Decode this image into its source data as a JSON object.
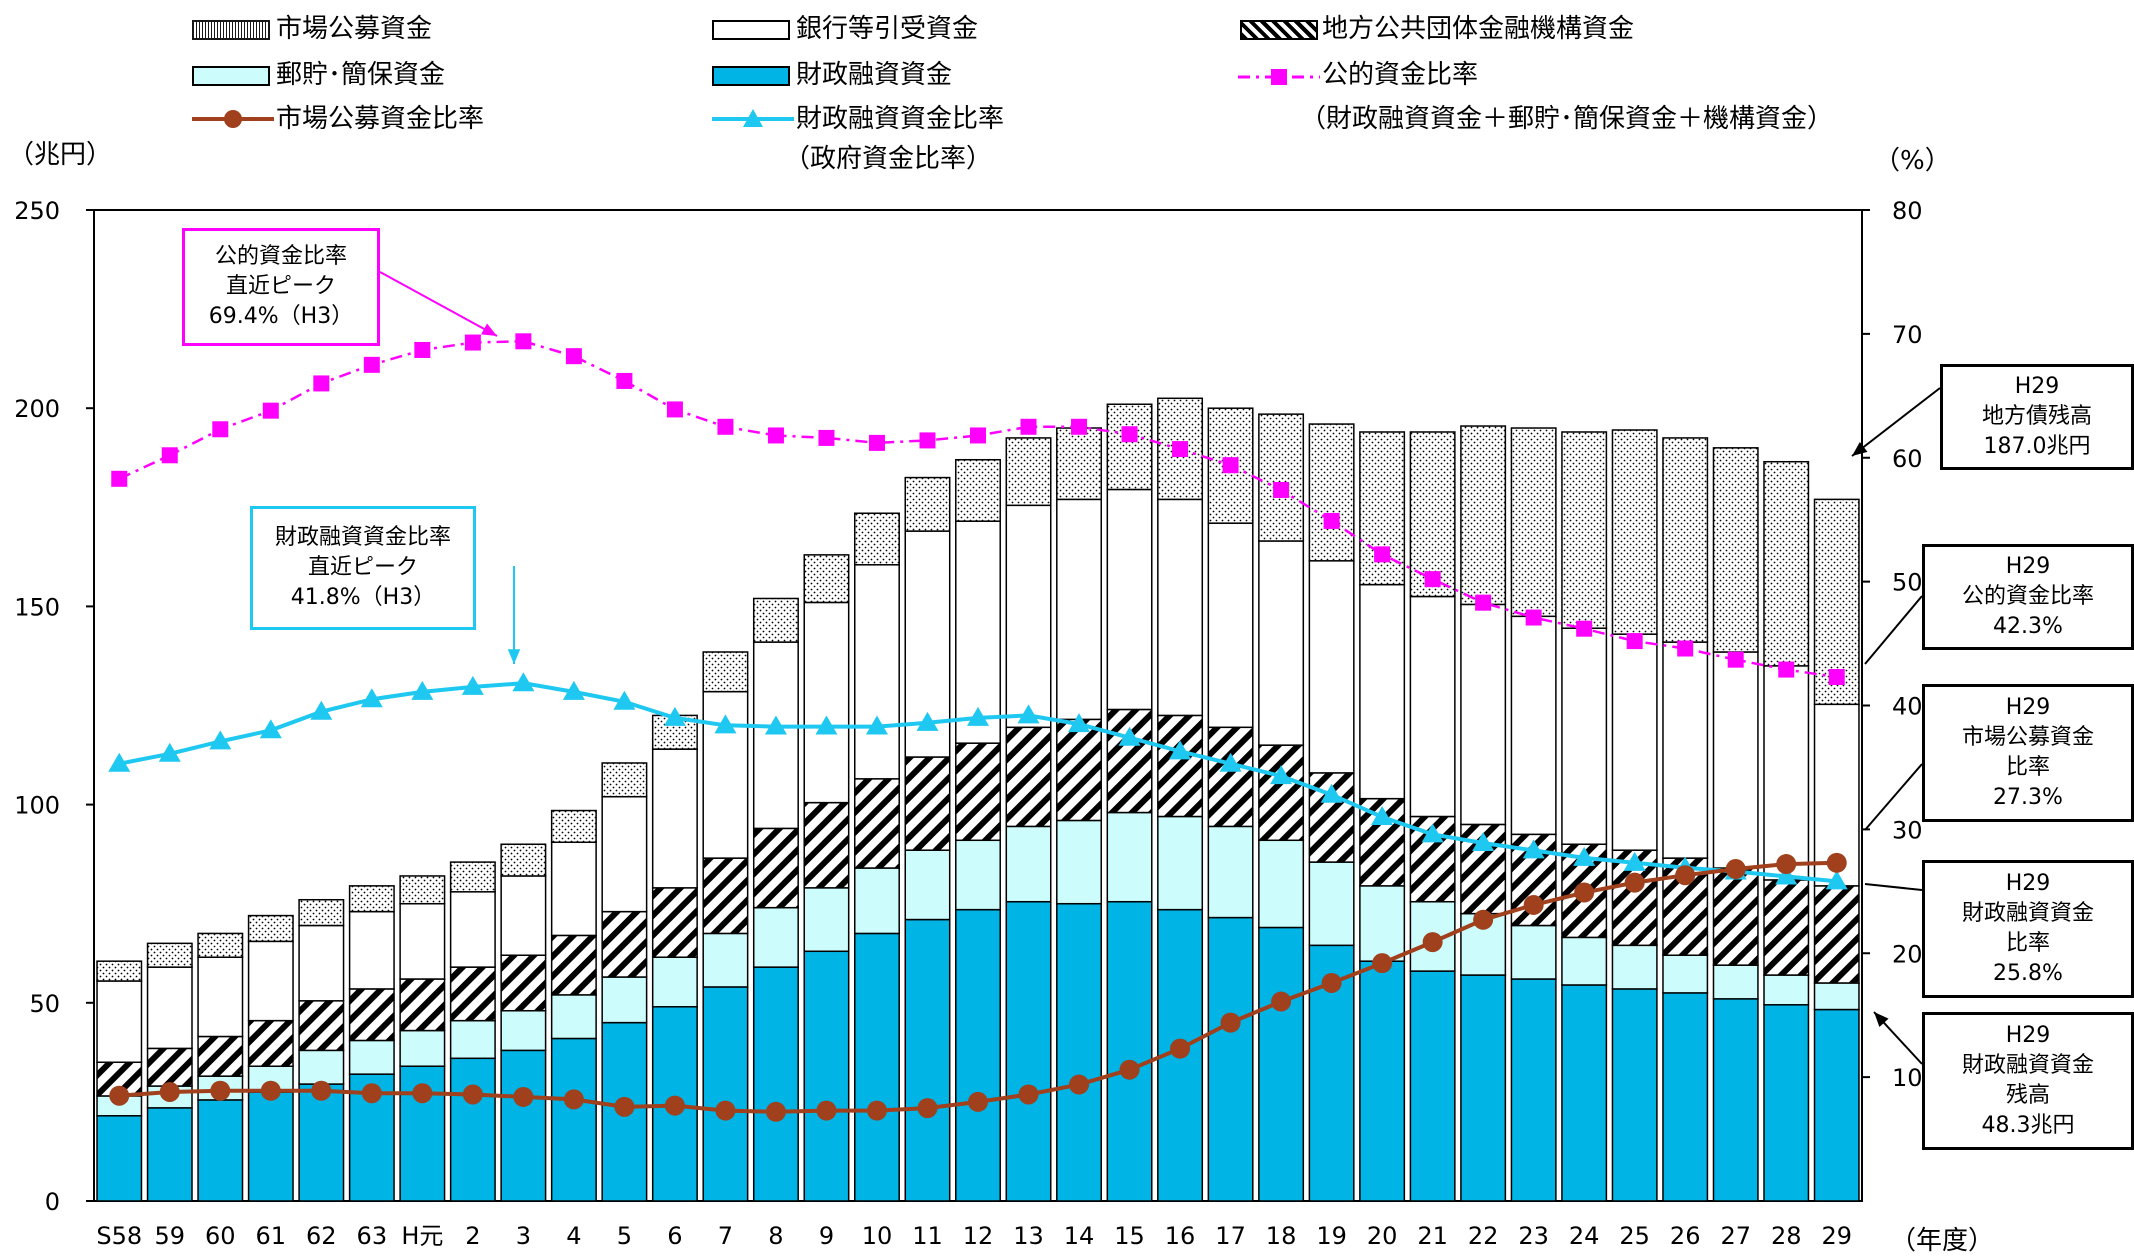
{
  "legend": {
    "market_funds": "市場公募資金",
    "bank_funds": "銀行等引受資金",
    "local_agency_funds": "地方公共団体金融機構資金",
    "postal_funds": "郵貯･簡保資金",
    "fiscal_funds": "財政融資資金",
    "public_ratio": "公的資金比率",
    "market_ratio": "市場公募資金比率",
    "fiscal_ratio": "財政融資資金比率",
    "fiscal_ratio_note": "（政府資金比率）",
    "public_ratio_note": "（財政融資資金＋郵貯･簡保資金＋機構資金）"
  },
  "units": {
    "left": "（兆円）",
    "right": "（%）",
    "x": "（年度）"
  },
  "peak_callouts": {
    "public": [
      "公的資金比率",
      "直近ピーク",
      "69.4%（H3）"
    ],
    "fiscal": [
      "財政融資資金比率",
      "直近ピーク",
      "41.8%（H3）"
    ]
  },
  "side_callouts": [
    {
      "lines": [
        "H29",
        "地方債残高",
        "187.0兆円"
      ]
    },
    {
      "lines": [
        "H29",
        "公的資金比率",
        "42.3%"
      ]
    },
    {
      "lines": [
        "H29",
        "市場公募資金",
        "比率",
        "27.3%"
      ]
    },
    {
      "lines": [
        "H29",
        "財政融資資金",
        "比率",
        "25.8%"
      ]
    },
    {
      "lines": [
        "H29",
        "財政融資資金",
        "残高",
        "48.3兆円"
      ]
    }
  ],
  "colors": {
    "fiscal": "#00b4e6",
    "postal": "#ccfcfc",
    "bank": "#ffffff",
    "market_dots": "#000000",
    "public_ratio": "#ff00ff",
    "fiscal_ratio": "#1ec8f0",
    "market_ratio": "#a0401c"
  },
  "chart_data": {
    "type": "bar",
    "stacked": true,
    "categories": [
      "S58",
      "59",
      "60",
      "61",
      "62",
      "63",
      "H元",
      "2",
      "3",
      "4",
      "5",
      "6",
      "7",
      "8",
      "9",
      "10",
      "11",
      "12",
      "13",
      "14",
      "15",
      "16",
      "17",
      "18",
      "19",
      "20",
      "21",
      "22",
      "23",
      "24",
      "25",
      "26",
      "27",
      "28",
      "29"
    ],
    "left_axis": {
      "ylim": [
        0,
        250
      ],
      "ticks": [
        "0",
        "50",
        "100",
        "150",
        "200",
        "250"
      ]
    },
    "right_axis": {
      "ylim": [
        0,
        80
      ],
      "ticks": [
        "10",
        "20",
        "30",
        "40",
        "50",
        "60",
        "70",
        "80"
      ]
    },
    "series": [
      {
        "name": "財政融資資金",
        "kind": "bar",
        "values": [
          21.5,
          23.5,
          25.5,
          27.5,
          29.5,
          32,
          34,
          36,
          38,
          41,
          45,
          49,
          54,
          59,
          63,
          67.5,
          71,
          73.5,
          75.5,
          75,
          75.5,
          73.5,
          71.5,
          69,
          64.5,
          60.5,
          58,
          57,
          56,
          54.5,
          53.5,
          52.5,
          51,
          49.5,
          48.3
        ]
      },
      {
        "name": "郵貯･簡保資金",
        "kind": "bar",
        "values": [
          5,
          5.5,
          6,
          6.5,
          8.5,
          8.5,
          9,
          9.5,
          10,
          11,
          11.5,
          12.5,
          13.5,
          15,
          16,
          16.5,
          17.5,
          17.5,
          19,
          21,
          22.5,
          23.5,
          23,
          22,
          21,
          19,
          17.5,
          15.5,
          13.5,
          12,
          11,
          9.5,
          8.5,
          7.5,
          6.7
        ]
      },
      {
        "name": "地方公共団体金融機構資金",
        "kind": "bar",
        "values": [
          8.5,
          9.5,
          10,
          11.5,
          12.5,
          13,
          13,
          13.5,
          14,
          15,
          16.5,
          17.5,
          19,
          20,
          21.5,
          22.5,
          23.5,
          24.5,
          25,
          25.5,
          26,
          25.5,
          25,
          24,
          22.5,
          22,
          21.5,
          22.5,
          23,
          23.5,
          24,
          24.5,
          24.5,
          24,
          24.5
        ]
      },
      {
        "name": "銀行等引受資金",
        "kind": "bar",
        "values": [
          20.5,
          20.5,
          20,
          20,
          19,
          19.5,
          19,
          19,
          20,
          23.5,
          29,
          35,
          42,
          47,
          50.5,
          54,
          57,
          56,
          56,
          55.5,
          55.5,
          54.5,
          51.5,
          51.5,
          53.5,
          54,
          55.5,
          55.5,
          55,
          54.5,
          54.5,
          54.5,
          54.5,
          54,
          45.8
        ]
      },
      {
        "name": "市場公募資金",
        "kind": "bar",
        "values": [
          5,
          6,
          6,
          6.5,
          6.5,
          6.5,
          7,
          7.5,
          8,
          8,
          8.5,
          8.5,
          10,
          11,
          12,
          13,
          13.5,
          15.5,
          17,
          18,
          21.5,
          25.5,
          29,
          32,
          34.5,
          38.5,
          41.5,
          45,
          47.5,
          49.5,
          51.5,
          51.5,
          51.5,
          51.5,
          51.7
        ]
      },
      {
        "name": "公的資金比率",
        "kind": "line",
        "axis": "right",
        "values": [
          58.3,
          60.2,
          62.3,
          63.8,
          66.0,
          67.5,
          68.7,
          69.3,
          69.4,
          68.2,
          66.2,
          63.9,
          62.5,
          61.8,
          61.6,
          61.2,
          61.4,
          61.8,
          62.5,
          62.5,
          61.9,
          60.7,
          59.4,
          57.4,
          54.9,
          52.2,
          50.2,
          48.3,
          47.1,
          46.2,
          45.2,
          44.6,
          43.7,
          42.9,
          42.3
        ]
      },
      {
        "name": "財政融資資金比率",
        "kind": "line",
        "axis": "right",
        "values": [
          35.3,
          36.1,
          37.1,
          38.0,
          39.5,
          40.5,
          41.1,
          41.5,
          41.8,
          41.1,
          40.3,
          39.0,
          38.4,
          38.3,
          38.3,
          38.3,
          38.6,
          39.0,
          39.2,
          38.5,
          37.4,
          36.3,
          35.3,
          34.3,
          32.8,
          31.0,
          29.6,
          28.9,
          28.3,
          27.7,
          27.3,
          26.9,
          26.6,
          26.2,
          25.8
        ]
      },
      {
        "name": "市場公募資金比率",
        "kind": "line",
        "axis": "right",
        "values": [
          8.5,
          8.8,
          8.9,
          8.9,
          8.9,
          8.7,
          8.7,
          8.6,
          8.4,
          8.2,
          7.6,
          7.7,
          7.3,
          7.2,
          7.3,
          7.3,
          7.5,
          8.0,
          8.6,
          9.4,
          10.6,
          12.3,
          14.4,
          16.1,
          17.6,
          19.2,
          20.9,
          22.7,
          23.9,
          24.9,
          25.7,
          26.3,
          26.8,
          27.2,
          27.3
        ]
      }
    ]
  }
}
